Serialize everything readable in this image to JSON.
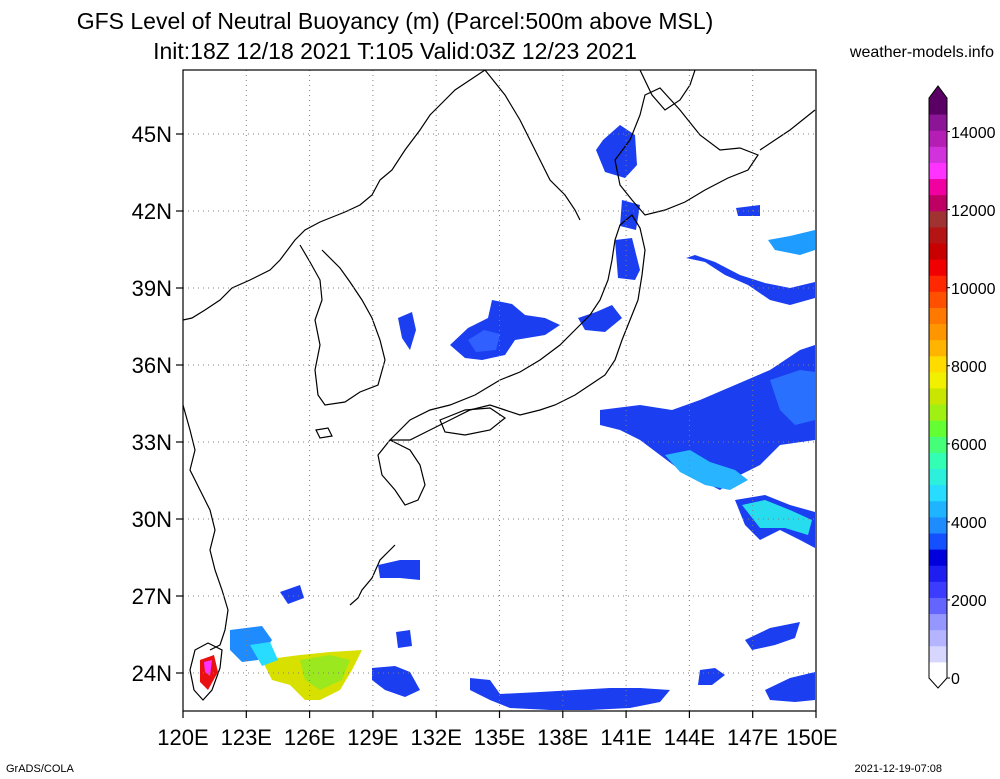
{
  "title_line1": "GFS Level of Neutral Buoyancy (m) (Parcel:500m above MSL)",
  "title_line2": "Init:18Z 12/18 2021 T:105 Valid:03Z 12/23 2021",
  "site": "weather-models.info",
  "footer_left": "GrADS/COLA",
  "footer_right": "2021-12-19-07:08",
  "map": {
    "lon_labels": [
      "120E",
      "123E",
      "126E",
      "129E",
      "132E",
      "135E",
      "138E",
      "141E",
      "144E",
      "147E",
      "150E"
    ],
    "lat_labels": [
      "45N",
      "42N",
      "39N",
      "36N",
      "33N",
      "30N",
      "27N",
      "24N"
    ]
  },
  "colorbar": {
    "labels": [
      "0",
      "2000",
      "4000",
      "6000",
      "8000",
      "10000",
      "12000",
      "14000"
    ],
    "colors": [
      "#ffffff",
      "#d6d6ff",
      "#b4b4ff",
      "#9696ff",
      "#6464ff",
      "#3c3cff",
      "#1e1ef0",
      "#0000dc",
      "#1450ff",
      "#1e8cff",
      "#1eb4ff",
      "#28dcff",
      "#2df0dc",
      "#32ffb4",
      "#46ff78",
      "#64ff32",
      "#a0f014",
      "#c8e600",
      "#f0f000",
      "#ffdc00",
      "#ffb400",
      "#ff9600",
      "#ff7800",
      "#ff5000",
      "#ff2800",
      "#f00000",
      "#c80000",
      "#b41414",
      "#a03232",
      "#be0064",
      "#f000a0",
      "#ff32ff",
      "#d232dc",
      "#b41eb4",
      "#8c1496",
      "#5a0064"
    ]
  },
  "colors": {
    "coast": "#000000",
    "grid": "#808080"
  }
}
